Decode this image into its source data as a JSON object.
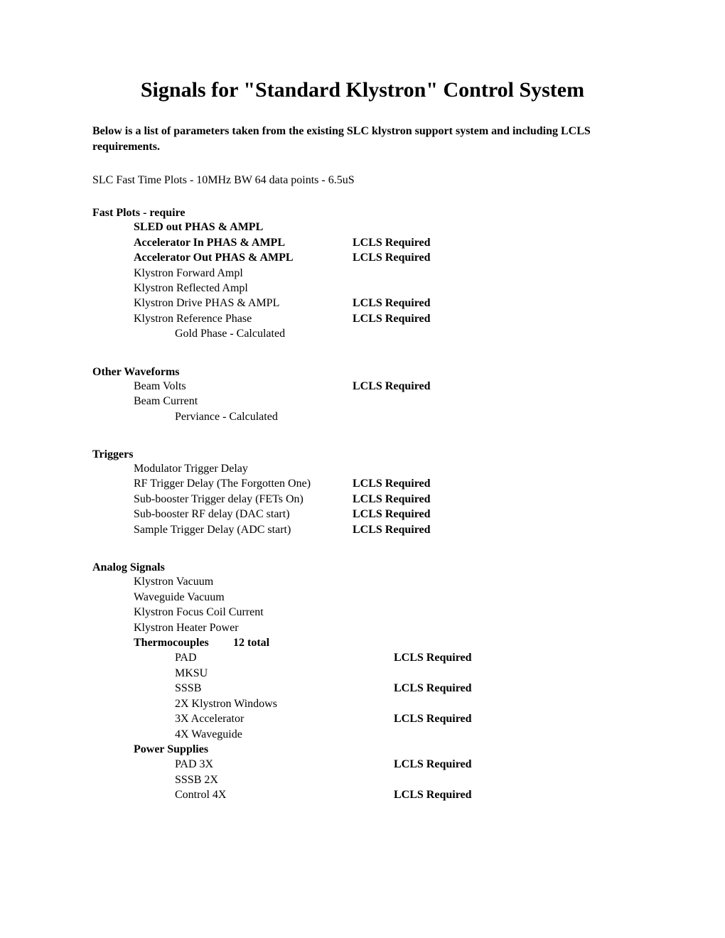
{
  "title": "Signals for \"Standard Klystron\" Control System",
  "intro": "Below is a list of parameters taken from the existing SLC klystron support system and including LCLS requirements.",
  "subnote": "SLC Fast Time Plots - 10MHz BW  64 data points - 6.5uS",
  "req": "LCLS Required",
  "sections": {
    "fast_plots": {
      "head": "Fast Plots - require",
      "items": [
        {
          "label": "SLED out PHAS & AMPL",
          "bold": true,
          "req": false,
          "indent": 1
        },
        {
          "label": "Accelerator In PHAS & AMPL",
          "bold": true,
          "req": true,
          "indent": 1
        },
        {
          "label": "Accelerator Out PHAS & AMPL",
          "bold": true,
          "req": true,
          "indent": 1
        },
        {
          "label": "Klystron Forward Ampl",
          "bold": false,
          "req": false,
          "indent": 1
        },
        {
          "label": "Klystron Reflected Ampl",
          "bold": false,
          "req": false,
          "indent": 1
        },
        {
          "label": "Klystron Drive PHAS & AMPL",
          "bold": false,
          "req": true,
          "indent": 1
        },
        {
          "label": "Klystron Reference Phase",
          "bold": false,
          "req": true,
          "indent": 1
        },
        {
          "label": "Gold Phase - Calculated",
          "bold": false,
          "req": false,
          "indent": 2
        }
      ]
    },
    "other_waveforms": {
      "head": "Other Waveforms",
      "items": [
        {
          "label": "Beam Volts",
          "bold": false,
          "req": true,
          "indent": 1
        },
        {
          "label": "Beam Current",
          "bold": false,
          "req": false,
          "indent": 1
        },
        {
          "label": "Perviance - Calculated",
          "bold": false,
          "req": false,
          "indent": 2
        }
      ]
    },
    "triggers": {
      "head": "Triggers",
      "items": [
        {
          "label": "Modulator Trigger Delay",
          "bold": false,
          "req": false,
          "indent": 1
        },
        {
          "label": "RF Trigger Delay (The Forgotten One)",
          "bold": false,
          "req": true,
          "indent": 1
        },
        {
          "label": "Sub-booster Trigger delay (FETs On)",
          "bold": false,
          "req": true,
          "indent": 1
        },
        {
          "label": "Sub-booster RF delay (DAC start)",
          "bold": false,
          "req": true,
          "indent": 1
        },
        {
          "label": "Sample Trigger Delay (ADC start)",
          "bold": false,
          "req": true,
          "indent": 1
        }
      ]
    },
    "analog": {
      "head": "Analog Signals",
      "items_top": [
        {
          "label": "Klystron Vacuum",
          "bold": false,
          "req": false,
          "indent": 1
        },
        {
          "label": "Waveguide Vacuum",
          "bold": false,
          "req": false,
          "indent": 1
        },
        {
          "label": "Klystron Focus Coil Current",
          "bold": false,
          "req": false,
          "indent": 1
        },
        {
          "label": "Klystron Heater Power",
          "bold": false,
          "req": false,
          "indent": 1
        }
      ],
      "thermo_head": "Thermocouples",
      "thermo_count": "12 total",
      "thermo_items": [
        {
          "label": "PAD",
          "req": true
        },
        {
          "label": "MKSU",
          "req": false
        },
        {
          "label": "SSSB",
          "req": true
        },
        {
          "label": "2X Klystron Windows",
          "req": false
        },
        {
          "label": "3X Accelerator",
          "req": true
        },
        {
          "label": "4X Waveguide",
          "req": false
        }
      ],
      "ps_head": "Power Supplies",
      "ps_items": [
        {
          "label": "PAD 3X",
          "req": true
        },
        {
          "label": "SSSB 2X",
          "req": false
        },
        {
          "label": "Control 4X",
          "req": true
        }
      ]
    }
  }
}
